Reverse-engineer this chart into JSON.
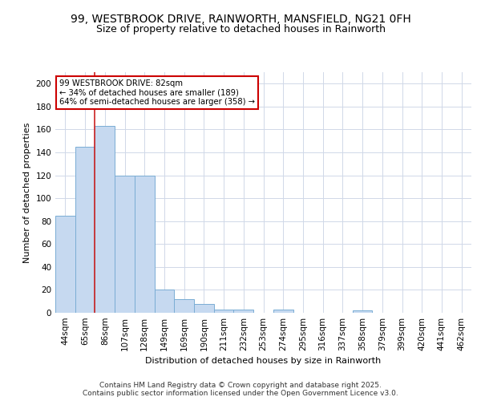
{
  "title": "99, WESTBROOK DRIVE, RAINWORTH, MANSFIELD, NG21 0FH",
  "subtitle": "Size of property relative to detached houses in Rainworth",
  "xlabel": "Distribution of detached houses by size in Rainworth",
  "ylabel": "Number of detached properties",
  "bar_color": "#c6d9f0",
  "bar_edge_color": "#7aadd4",
  "categories": [
    "44sqm",
    "65sqm",
    "86sqm",
    "107sqm",
    "128sqm",
    "149sqm",
    "169sqm",
    "190sqm",
    "211sqm",
    "232sqm",
    "253sqm",
    "274sqm",
    "295sqm",
    "316sqm",
    "337sqm",
    "358sqm",
    "379sqm",
    "399sqm",
    "420sqm",
    "441sqm",
    "462sqm"
  ],
  "values": [
    85,
    145,
    163,
    120,
    120,
    20,
    12,
    8,
    3,
    3,
    0,
    3,
    0,
    0,
    0,
    2,
    0,
    0,
    0,
    0,
    0
  ],
  "red_line_x": 2,
  "annotation_text": "99 WESTBROOK DRIVE: 82sqm\n← 34% of detached houses are smaller (189)\n64% of semi-detached houses are larger (358) →",
  "annotation_box_facecolor": "#ffffff",
  "annotation_box_edgecolor": "#cc0000",
  "ylim": [
    0,
    210
  ],
  "yticks": [
    0,
    20,
    40,
    60,
    80,
    100,
    120,
    140,
    160,
    180,
    200
  ],
  "footer": "Contains HM Land Registry data © Crown copyright and database right 2025.\nContains public sector information licensed under the Open Government Licence v3.0.",
  "background_color": "#ffffff",
  "grid_color": "#d0d8e8",
  "title_fontsize": 10,
  "subtitle_fontsize": 9,
  "axis_label_fontsize": 8,
  "tick_fontsize": 7.5,
  "footer_fontsize": 6.5
}
